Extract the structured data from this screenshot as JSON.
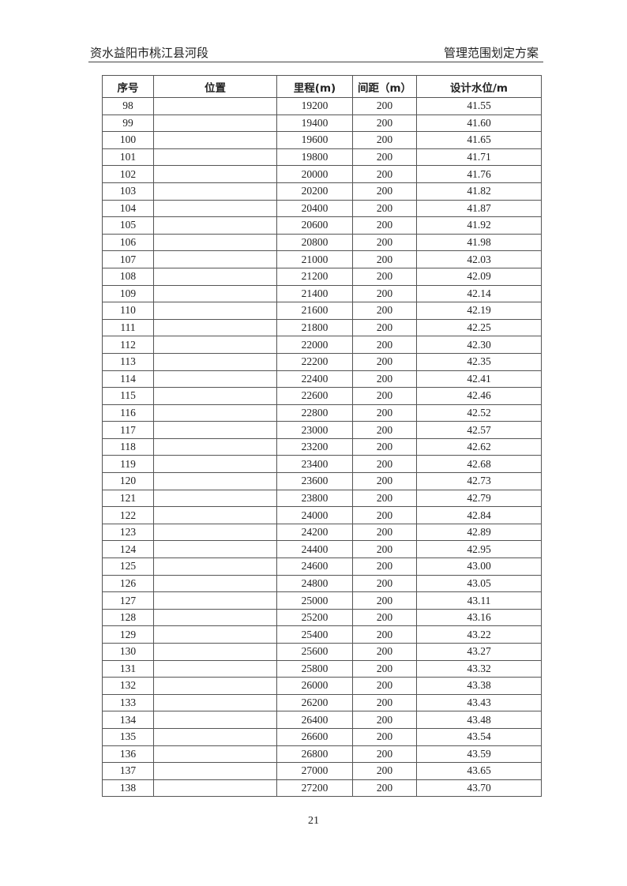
{
  "header": {
    "left": "资水益阳市桃江县河段",
    "right": "管理范围划定方案"
  },
  "table": {
    "columns": [
      "序号",
      "位置",
      "里程(m)",
      "间距（m）",
      "设计水位/m"
    ],
    "rows": [
      [
        "98",
        "",
        "19200",
        "200",
        "41.55"
      ],
      [
        "99",
        "",
        "19400",
        "200",
        "41.60"
      ],
      [
        "100",
        "",
        "19600",
        "200",
        "41.65"
      ],
      [
        "101",
        "",
        "19800",
        "200",
        "41.71"
      ],
      [
        "102",
        "",
        "20000",
        "200",
        "41.76"
      ],
      [
        "103",
        "",
        "20200",
        "200",
        "41.82"
      ],
      [
        "104",
        "",
        "20400",
        "200",
        "41.87"
      ],
      [
        "105",
        "",
        "20600",
        "200",
        "41.92"
      ],
      [
        "106",
        "",
        "20800",
        "200",
        "41.98"
      ],
      [
        "107",
        "",
        "21000",
        "200",
        "42.03"
      ],
      [
        "108",
        "",
        "21200",
        "200",
        "42.09"
      ],
      [
        "109",
        "",
        "21400",
        "200",
        "42.14"
      ],
      [
        "110",
        "",
        "21600",
        "200",
        "42.19"
      ],
      [
        "111",
        "",
        "21800",
        "200",
        "42.25"
      ],
      [
        "112",
        "",
        "22000",
        "200",
        "42.30"
      ],
      [
        "113",
        "",
        "22200",
        "200",
        "42.35"
      ],
      [
        "114",
        "",
        "22400",
        "200",
        "42.41"
      ],
      [
        "115",
        "",
        "22600",
        "200",
        "42.46"
      ],
      [
        "116",
        "",
        "22800",
        "200",
        "42.52"
      ],
      [
        "117",
        "",
        "23000",
        "200",
        "42.57"
      ],
      [
        "118",
        "",
        "23200",
        "200",
        "42.62"
      ],
      [
        "119",
        "",
        "23400",
        "200",
        "42.68"
      ],
      [
        "120",
        "",
        "23600",
        "200",
        "42.73"
      ],
      [
        "121",
        "",
        "23800",
        "200",
        "42.79"
      ],
      [
        "122",
        "",
        "24000",
        "200",
        "42.84"
      ],
      [
        "123",
        "",
        "24200",
        "200",
        "42.89"
      ],
      [
        "124",
        "",
        "24400",
        "200",
        "42.95"
      ],
      [
        "125",
        "",
        "24600",
        "200",
        "43.00"
      ],
      [
        "126",
        "",
        "24800",
        "200",
        "43.05"
      ],
      [
        "127",
        "",
        "25000",
        "200",
        "43.11"
      ],
      [
        "128",
        "",
        "25200",
        "200",
        "43.16"
      ],
      [
        "129",
        "",
        "25400",
        "200",
        "43.22"
      ],
      [
        "130",
        "",
        "25600",
        "200",
        "43.27"
      ],
      [
        "131",
        "",
        "25800",
        "200",
        "43.32"
      ],
      [
        "132",
        "",
        "26000",
        "200",
        "43.38"
      ],
      [
        "133",
        "",
        "26200",
        "200",
        "43.43"
      ],
      [
        "134",
        "",
        "26400",
        "200",
        "43.48"
      ],
      [
        "135",
        "",
        "26600",
        "200",
        "43.54"
      ],
      [
        "136",
        "",
        "26800",
        "200",
        "43.59"
      ],
      [
        "137",
        "",
        "27000",
        "200",
        "43.65"
      ],
      [
        "138",
        "",
        "27200",
        "200",
        "43.70"
      ]
    ]
  },
  "page_number": "21"
}
